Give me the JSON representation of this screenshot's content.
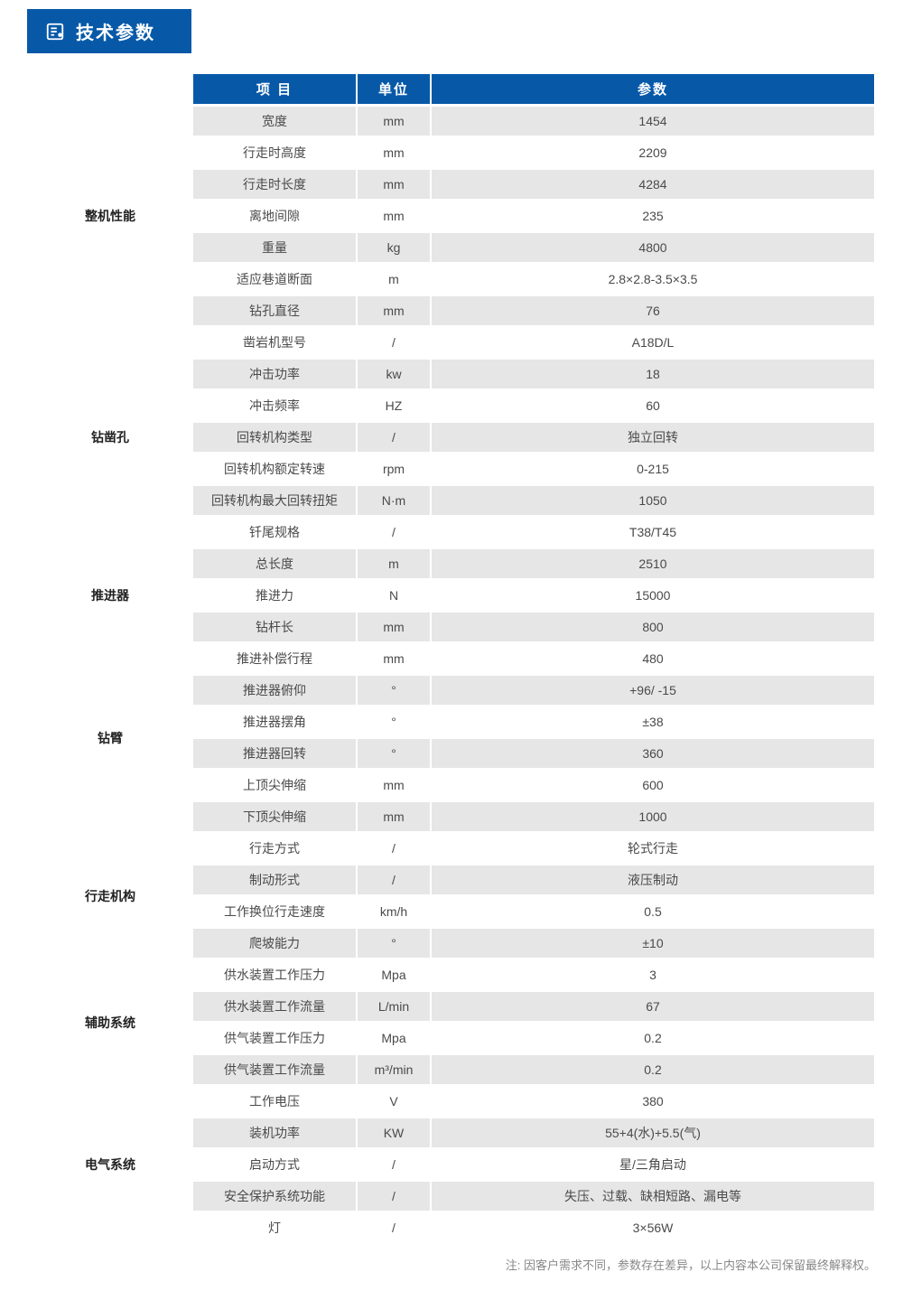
{
  "colors": {
    "header_bg": "#0759a8",
    "header_text": "#ffffff",
    "alt_row_bg": "#e6e6e6",
    "row_bg": "#ffffff",
    "text": "#4a4a4a",
    "category_text": "#222222",
    "footnote_text": "#888888"
  },
  "section": {
    "title": "技术参数"
  },
  "table": {
    "headers": {
      "item": "项 目",
      "unit": "单位",
      "param": "参数"
    },
    "groups": [
      {
        "category": "整机性能",
        "rows": [
          {
            "item": "宽度",
            "unit": "mm",
            "param": "1454",
            "alt": true
          },
          {
            "item": "行走时高度",
            "unit": "mm",
            "param": "2209",
            "alt": false
          },
          {
            "item": "行走时长度",
            "unit": "mm",
            "param": "4284",
            "alt": true
          },
          {
            "item": "离地间隙",
            "unit": "mm",
            "param": "235",
            "alt": false
          },
          {
            "item": "重量",
            "unit": "kg",
            "param": "4800",
            "alt": true
          },
          {
            "item": "适应巷道断面",
            "unit": "m",
            "param": "2.8×2.8-3.5×3.5",
            "alt": false
          },
          {
            "item": "钻孔直径",
            "unit": "mm",
            "param": "76",
            "alt": true
          }
        ]
      },
      {
        "category": "钻凿孔",
        "rows": [
          {
            "item": "凿岩机型号",
            "unit": "/",
            "param": "A18D/L",
            "alt": false
          },
          {
            "item": "冲击功率",
            "unit": "kw",
            "param": "18",
            "alt": true
          },
          {
            "item": "冲击频率",
            "unit": "HZ",
            "param": "60",
            "alt": false
          },
          {
            "item": "回转机构类型",
            "unit": "/",
            "param": "独立回转",
            "alt": true
          },
          {
            "item": "回转机构额定转速",
            "unit": "rpm",
            "param": "0-215",
            "alt": false
          },
          {
            "item": "回转机构最大回转扭矩",
            "unit": "N·m",
            "param": "1050",
            "alt": true
          },
          {
            "item": "钎尾规格",
            "unit": "/",
            "param": "T38/T45",
            "alt": false
          }
        ]
      },
      {
        "category": "推进器",
        "rows": [
          {
            "item": "总长度",
            "unit": "m",
            "param": "2510",
            "alt": true
          },
          {
            "item": "推进力",
            "unit": "N",
            "param": "15000",
            "alt": false
          },
          {
            "item": "钻杆长",
            "unit": "mm",
            "param": "800",
            "alt": true
          }
        ]
      },
      {
        "category": "钻臂",
        "rows": [
          {
            "item": "推进补偿行程",
            "unit": "mm",
            "param": "480",
            "alt": false
          },
          {
            "item": "推进器俯仰",
            "unit": "°",
            "param": "+96/ -15",
            "alt": true
          },
          {
            "item": "推进器摆角",
            "unit": "°",
            "param": "±38",
            "alt": false
          },
          {
            "item": "推进器回转",
            "unit": "°",
            "param": "360",
            "alt": true
          },
          {
            "item": "上顶尖伸缩",
            "unit": "mm",
            "param": "600",
            "alt": false
          },
          {
            "item": "下顶尖伸缩",
            "unit": "mm",
            "param": "1000",
            "alt": true
          }
        ]
      },
      {
        "category": "行走机构",
        "rows": [
          {
            "item": "行走方式",
            "unit": "/",
            "param": "轮式行走",
            "alt": false
          },
          {
            "item": "制动形式",
            "unit": "/",
            "param": "液压制动",
            "alt": true
          },
          {
            "item": "工作换位行走速度",
            "unit": "km/h",
            "param": "0.5",
            "alt": false
          },
          {
            "item": "爬坡能力",
            "unit": "°",
            "param": "±10",
            "alt": true
          }
        ]
      },
      {
        "category": "辅助系统",
        "rows": [
          {
            "item": "供水装置工作压力",
            "unit": "Mpa",
            "param": "3",
            "alt": false
          },
          {
            "item": "供水装置工作流量",
            "unit": "L/min",
            "param": "67",
            "alt": true
          },
          {
            "item": "供气装置工作压力",
            "unit": "Mpa",
            "param": "0.2",
            "alt": false
          },
          {
            "item": "供气装置工作流量",
            "unit": "m³/min",
            "param": "0.2",
            "alt": true
          }
        ]
      },
      {
        "category": "电气系统",
        "rows": [
          {
            "item": "工作电压",
            "unit": "V",
            "param": "380",
            "alt": false
          },
          {
            "item": "装机功率",
            "unit": "KW",
            "param": "55+4(水)+5.5(气)",
            "alt": true
          },
          {
            "item": "启动方式",
            "unit": "/",
            "param": "星/三角启动",
            "alt": false
          },
          {
            "item": "安全保护系统功能",
            "unit": "/",
            "param": "失压、过载、缺相短路、漏电等",
            "alt": true
          },
          {
            "item": "灯",
            "unit": "/",
            "param": "3×56W",
            "alt": false
          }
        ]
      }
    ]
  },
  "footnote": "注: 因客户需求不同，参数存在差异，以上内容本公司保留最终解释权。"
}
